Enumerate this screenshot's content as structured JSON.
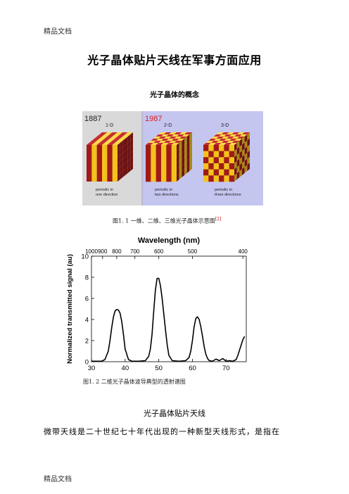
{
  "header": {
    "text": "精品文档"
  },
  "footer": {
    "text": "精品文档"
  },
  "title": "光子晶体贴片天线在军事方面应用",
  "subtitle": "光子晶体的概念",
  "figure1": {
    "years": [
      "1887",
      "1987"
    ],
    "dims": [
      "1-D",
      "2-D",
      "3-D"
    ],
    "captions": [
      [
        "periodic in",
        "one direction"
      ],
      [
        "periodic in",
        "two directions"
      ],
      [
        "periodic in",
        "three directions"
      ]
    ],
    "caption": "图1. 1   一维、二维、三维光子晶体示意图",
    "caption_ref": "[2]",
    "colors": {
      "left_bg": "#d9d9d9",
      "right_bg": "#c4c6f0",
      "red": "#a01a1a",
      "yellow": "#f3c21c",
      "year_red": "#d81c1c"
    }
  },
  "chart_data": {
    "type": "line",
    "title": "Wavelength (nm)",
    "xlabel": "",
    "ylabel": "Normalized transmitted signal (au)",
    "xlim": [
      30,
      76
    ],
    "ylim": [
      0,
      10
    ],
    "x_ticks": [
      30,
      40,
      50,
      60,
      70
    ],
    "y_ticks": [
      0,
      2,
      4,
      6,
      8,
      10
    ],
    "top_ticks": [
      {
        "label": "1000",
        "x": 30.0
      },
      {
        "label": "900",
        "x": 33.3
      },
      {
        "label": "800",
        "x": 37.5
      },
      {
        "label": "700",
        "x": 42.9
      },
      {
        "label": "600",
        "x": 50.0
      },
      {
        "label": "500",
        "x": 60.0
      },
      {
        "label": "400",
        "x": 75.0
      }
    ],
    "series": [
      {
        "x": [
          30,
          33,
          34,
          35,
          35.5,
          36,
          36.5,
          37,
          37.5,
          38,
          38.5,
          39,
          39.5,
          40,
          41,
          42,
          44,
          46,
          47,
          47.5,
          48,
          48.5,
          49,
          49.5,
          50,
          50.5,
          51,
          51.5,
          52,
          52.5,
          53,
          54,
          56,
          58,
          59,
          59.5,
          60,
          60.5,
          61,
          61.5,
          62,
          62.5,
          63,
          63.5,
          64,
          64.5,
          65,
          66,
          67,
          68,
          69,
          70,
          71,
          72,
          73,
          73.5,
          74,
          74.5,
          75,
          75.5
        ],
        "y": [
          0.05,
          0.05,
          0.2,
          1.0,
          2.0,
          3.2,
          4.2,
          4.8,
          4.95,
          4.9,
          4.6,
          3.8,
          2.6,
          1.2,
          0.2,
          0.05,
          0.05,
          0.1,
          0.5,
          1.2,
          2.6,
          4.8,
          6.8,
          7.9,
          7.9,
          7.2,
          6.0,
          4.5,
          3.0,
          1.6,
          0.6,
          0.1,
          0.05,
          0.1,
          0.4,
          1.0,
          2.0,
          3.3,
          4.1,
          4.25,
          4.0,
          3.3,
          2.4,
          1.4,
          0.7,
          0.3,
          0.1,
          0.05,
          0.25,
          0.1,
          0.3,
          0.05,
          0.1,
          0.05,
          0.2,
          0.6,
          1.1,
          1.6,
          2.1,
          2.4
        ]
      }
    ]
  },
  "figure2": {
    "caption": "图1. 2   二维光子晶体波导典型的透射谱图"
  },
  "section_heading": "光子晶体贴片天线",
  "paragraph": "微带天线是二十世纪七十年代出现的一种新型天线形式，是指在"
}
